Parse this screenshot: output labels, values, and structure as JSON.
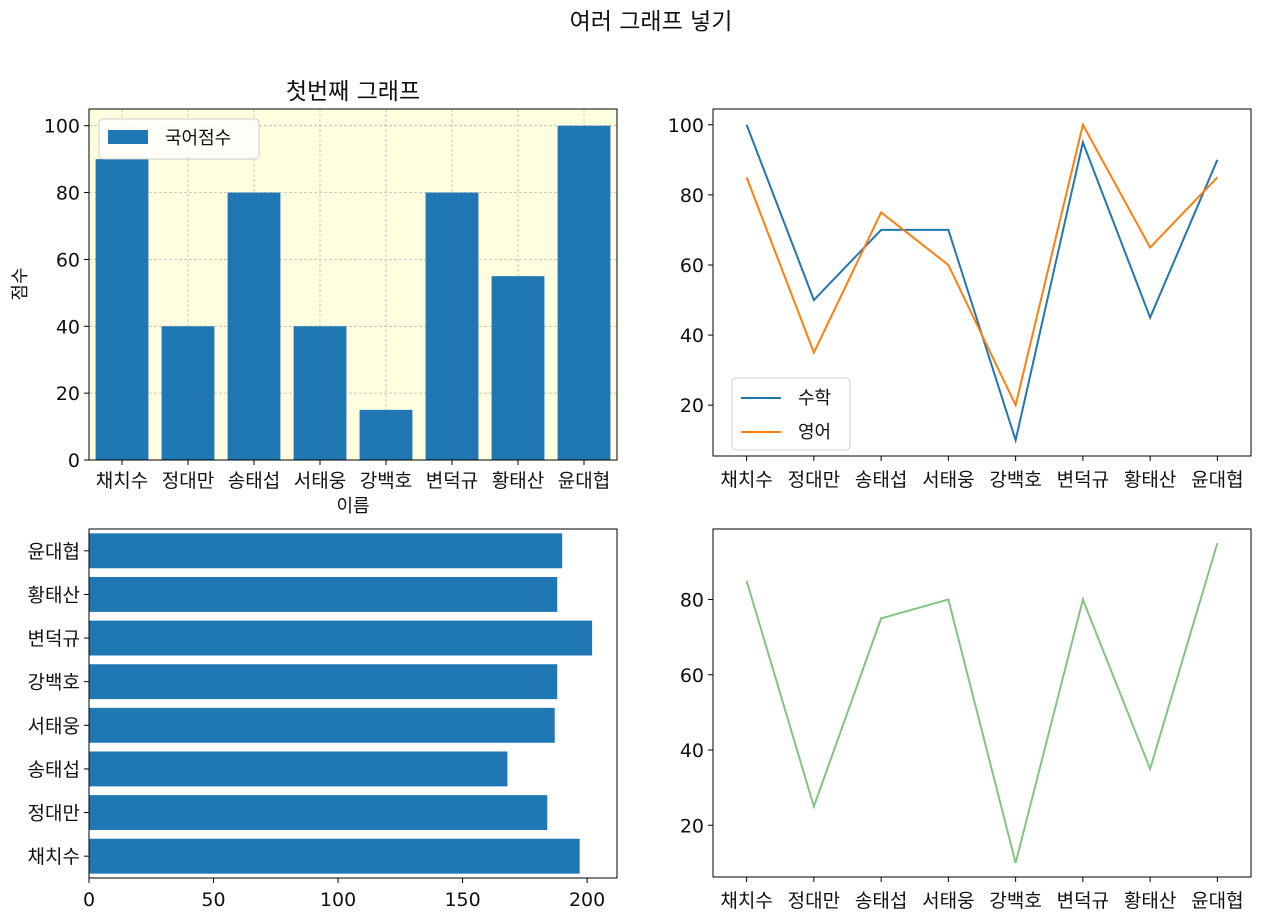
{
  "suptitle": "여러 그래프 넣기",
  "names": [
    "채치수",
    "정대만",
    "송태섭",
    "서태웅",
    "강백호",
    "변덕규",
    "황태산",
    "윤대협"
  ],
  "chart_data": [
    {
      "type": "bar",
      "title": "첫번째 그래프",
      "xlabel": "이름",
      "ylabel": "점수",
      "categories": [
        "채치수",
        "정대만",
        "송태섭",
        "서태웅",
        "강백호",
        "변덕규",
        "황태산",
        "윤대협"
      ],
      "series": [
        {
          "name": "국어점수",
          "values": [
            90,
            40,
            80,
            40,
            15,
            80,
            55,
            100
          ],
          "color": "#1f77b4"
        }
      ],
      "ylim": [
        0,
        105
      ],
      "yticks": [
        0,
        20,
        40,
        60,
        80,
        100
      ],
      "grid": true,
      "background": "#ffffe0",
      "legend": "top-left"
    },
    {
      "type": "line",
      "title": "",
      "categories": [
        "채치수",
        "정대만",
        "송태섭",
        "서태웅",
        "강백호",
        "변덕규",
        "황태산",
        "윤대협"
      ],
      "series": [
        {
          "name": "수학",
          "values": [
            100,
            50,
            70,
            70,
            10,
            95,
            45,
            90
          ],
          "color": "#1f77b4"
        },
        {
          "name": "영어",
          "values": [
            85,
            35,
            75,
            60,
            20,
            100,
            65,
            85
          ],
          "color": "#ff7f0e"
        }
      ],
      "ylim": [
        5.5,
        104.5
      ],
      "yticks": [
        20,
        40,
        60,
        80,
        100
      ],
      "grid": false,
      "legend": "bottom-left"
    },
    {
      "type": "barh",
      "title": "",
      "categories": [
        "채치수",
        "정대만",
        "송태섭",
        "서태웅",
        "강백호",
        "변덕규",
        "황태산",
        "윤대협"
      ],
      "series": [
        {
          "values": [
            197,
            184,
            168,
            187,
            188,
            202,
            188,
            190
          ],
          "color": "#1f77b4"
        }
      ],
      "xlim": [
        0,
        212
      ],
      "xticks": [
        0,
        50,
        100,
        150,
        200
      ],
      "grid": false
    },
    {
      "type": "line",
      "title": "",
      "categories": [
        "채치수",
        "정대만",
        "송태섭",
        "서태웅",
        "강백호",
        "변덕규",
        "황태산",
        "윤대협"
      ],
      "series": [
        {
          "values": [
            85,
            25,
            75,
            80,
            10,
            80,
            35,
            95
          ],
          "color": "#2ca02c",
          "alpha": 0.6
        }
      ],
      "ylim": [
        6.25,
        98.75
      ],
      "yticks": [
        20,
        40,
        60,
        80
      ],
      "grid": false
    }
  ]
}
